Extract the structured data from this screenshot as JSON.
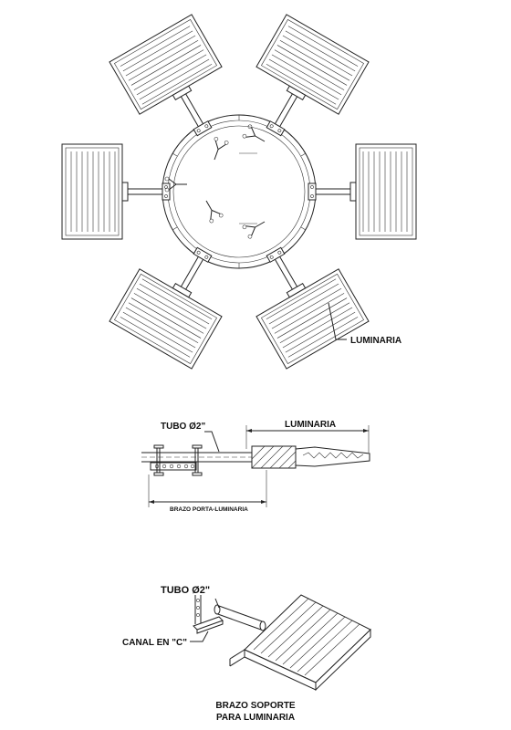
{
  "top_view": {
    "luminaria_label": "LUMINARIA"
  },
  "side_view": {
    "tubo_label": "TUBO Ø2\"",
    "luminaria_dim_label": "LUMINARIA",
    "brazo_dim_label": "BRAZO PORTA-LUMINARIA"
  },
  "iso_view": {
    "tubo_label": "TUBO Ø2\"",
    "canal_label": "CANAL EN \"C\""
  },
  "caption": {
    "line1": "BRAZO SOPORTE",
    "line2": "PARA LUMINARIA"
  }
}
